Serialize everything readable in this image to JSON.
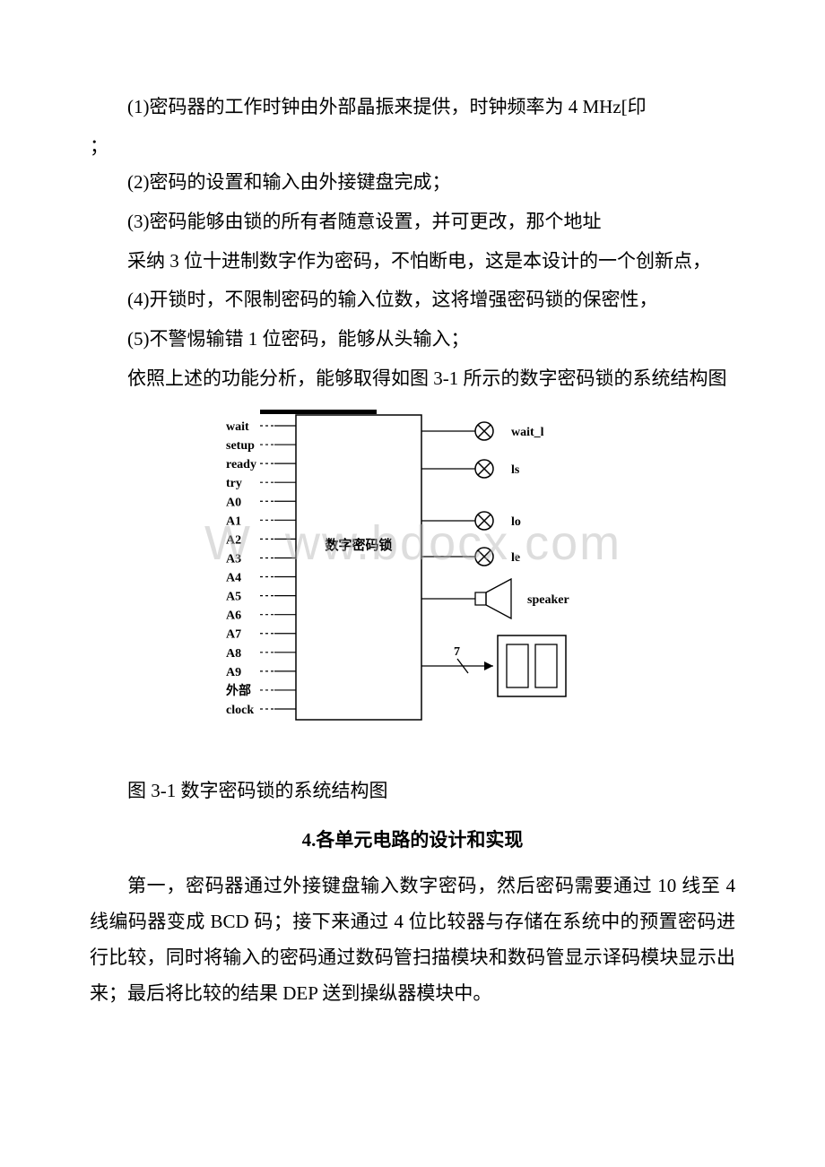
{
  "paragraphs": {
    "p1": "(1)密码器的工作时钟由外部晶振来提供，时钟频率为 4 MHz[印",
    "p1b": "；",
    "p2": "(2)密码的设置和输入由外接键盘完成；",
    "p3": "(3)密码能够由锁的所有者随意设置，并可更改，那个地址",
    "p4": "采纳 3 位十进制数字作为密码，不怕断电，这是本设计的一个创新点，",
    "p5": "(4)开锁时，不限制密码的输入位数，这将增强密码锁的保密性，",
    "p6": "(5)不警惕输错 1 位密码，能够从头输入；",
    "p7": "依照上述的功能分析，能够取得如图 3-1 所示的数字密码锁的系统结构图",
    "caption": "图 3-1 数字密码锁的系统结构图",
    "heading": "4.各单元电路的设计和实现",
    "p8": "第一，密码器通过外接键盘输入数字密码，然后密码需要通过 10 线至 4 线编码器变成 BCD 码；接下来通过 4 位比较器与存储在系统中的预置密码进行比较，同时将输入的密码通过数码管扫描模块和数码管显示译码模块显示出来；最后将比较的结果 DEP 送到操纵器模块中。"
  },
  "diagram": {
    "box_label": "数字密码锁",
    "inputs": [
      "wait",
      "setup",
      "ready",
      "try",
      "A0",
      "A1",
      "A2",
      "A3",
      "A4",
      "A5",
      "A6",
      "A7",
      "A8",
      "A9",
      "外部",
      "clock"
    ],
    "outputs": {
      "lamp1": "wait_l",
      "lamp2": "ls",
      "lamp3": "lo",
      "lamp4": "le",
      "speaker": "speaker",
      "seven": "7"
    },
    "colors": {
      "stroke": "#000000",
      "bg": "#ffffff",
      "text": "#000000"
    },
    "font": {
      "label_size": 14,
      "box_label_size": 15
    }
  },
  "watermark": {
    "text_left": "W",
    "text_right": "ww.bdocx.com",
    "color": "rgba(180,180,180,0.45)"
  }
}
